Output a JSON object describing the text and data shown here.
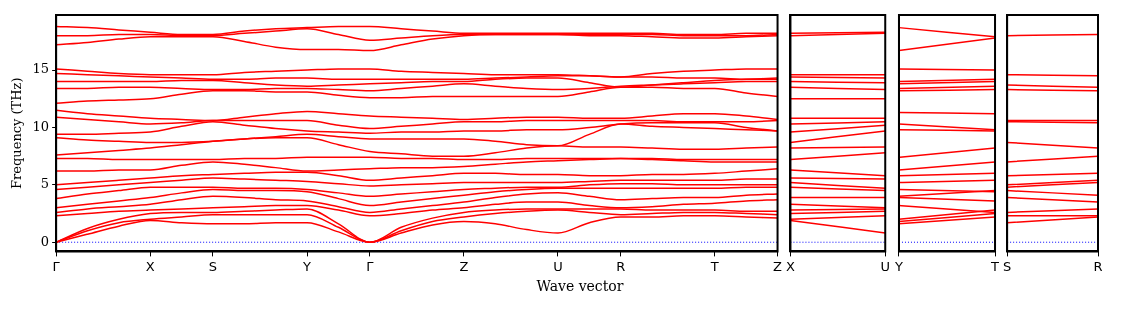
{
  "chart_data": [
    {
      "type": "line",
      "xlabel": "Wave vector",
      "ylabel": "Frequency (THz)",
      "marker": "none",
      "categories": [
        "Γ",
        null,
        null,
        "X",
        null,
        "S",
        null,
        null,
        "Y",
        null,
        "Γ",
        null,
        null,
        "Z",
        null,
        null,
        "U",
        null,
        "R",
        null,
        null,
        "T",
        null,
        "Z"
      ],
      "ylim": [
        -0.8,
        19.8
      ],
      "yticks": [
        0,
        5,
        10,
        15
      ],
      "ref_lines": [
        {
          "axis": "y",
          "value": 0,
          "color": "#0000ff",
          "line_style": "dotted"
        }
      ],
      "series": [
        {
          "color": "#ff0000",
          "values": [
            0,
            0.7,
            1.4,
            1.9,
            1.7,
            1.6,
            1.6,
            1.7,
            1.7,
            0.9,
            0,
            0.8,
            1.5,
            1.8,
            1.6,
            1.1,
            0.8,
            1.7,
            2.2,
            2.2,
            2.3,
            2.3,
            2.2,
            2.1
          ]
        },
        {
          "color": "#ff0000",
          "values": [
            0,
            1.0,
            1.7,
            2.0,
            2.2,
            2.4,
            2.4,
            2.4,
            2.4,
            1.3,
            0,
            1.0,
            1.8,
            2.2,
            2.5,
            2.7,
            2.8,
            2.6,
            2.4,
            2.5,
            2.6,
            2.6,
            2.5,
            2.4
          ]
        },
        {
          "color": "#ff0000",
          "values": [
            0,
            1.2,
            2.0,
            2.5,
            2.6,
            2.6,
            2.7,
            2.8,
            2.9,
            1.6,
            0,
            1.3,
            2.1,
            2.6,
            2.8,
            2.9,
            2.9,
            2.9,
            2.9,
            2.8,
            2.8,
            2.8,
            2.7,
            2.7
          ]
        },
        {
          "color": "#ff0000",
          "values": [
            2.3,
            2.5,
            2.7,
            2.8,
            2.9,
            3.0,
            3.1,
            3.2,
            3.2,
            2.8,
            2.3,
            2.5,
            2.8,
            3.0,
            3.3,
            3.5,
            3.5,
            3.2,
            3.0,
            3.1,
            3.3,
            3.4,
            3.6,
            3.7
          ]
        },
        {
          "color": "#ff0000",
          "values": [
            2.6,
            2.9,
            3.1,
            3.3,
            3.7,
            4.0,
            3.9,
            3.7,
            3.6,
            3.1,
            2.6,
            2.9,
            3.2,
            3.5,
            3.9,
            4.2,
            4.3,
            4.0,
            3.7,
            3.8,
            3.9,
            3.9,
            4.1,
            4.2
          ]
        },
        {
          "color": "#ff0000",
          "values": [
            3.0,
            3.3,
            3.6,
            3.9,
            4.3,
            4.6,
            4.5,
            4.5,
            4.4,
            3.8,
            3.2,
            3.5,
            3.8,
            4.1,
            4.4,
            4.6,
            4.7,
            4.7,
            4.7,
            4.7,
            4.7,
            4.7,
            4.8,
            4.8
          ]
        },
        {
          "color": "#ff0000",
          "values": [
            3.8,
            4.2,
            4.5,
            4.8,
            4.8,
            4.8,
            4.7,
            4.7,
            4.6,
            4.3,
            4.0,
            4.2,
            4.4,
            4.6,
            4.7,
            4.8,
            4.8,
            5.0,
            5.1,
            5.1,
            5.0,
            5.0,
            5.0,
            5.0
          ]
        },
        {
          "color": "#ff0000",
          "values": [
            4.6,
            4.8,
            5.0,
            5.2,
            5.4,
            5.6,
            5.5,
            5.4,
            5.3,
            5.1,
            4.9,
            5.0,
            5.1,
            5.2,
            5.2,
            5.2,
            5.2,
            5.3,
            5.4,
            5.4,
            5.4,
            5.4,
            5.5,
            5.5
          ]
        },
        {
          "color": "#ff0000",
          "values": [
            5.0,
            5.2,
            5.4,
            5.6,
            5.8,
            5.9,
            6.0,
            6.1,
            6.1,
            5.8,
            5.4,
            5.6,
            5.8,
            6.0,
            6.0,
            5.9,
            5.9,
            5.8,
            5.8,
            5.9,
            5.9,
            6.0,
            6.2,
            6.4
          ]
        },
        {
          "color": "#ff0000",
          "values": [
            6.2,
            6.2,
            6.3,
            6.3,
            6.7,
            7.0,
            6.8,
            6.5,
            6.2,
            6.3,
            6.4,
            6.5,
            6.5,
            6.6,
            6.8,
            7.0,
            7.1,
            7.2,
            7.3,
            7.2,
            7.1,
            7.0,
            7.0,
            7.0
          ]
        },
        {
          "color": "#ff0000",
          "values": [
            7.3,
            7.3,
            7.2,
            7.2,
            7.2,
            7.2,
            7.3,
            7.3,
            7.4,
            7.4,
            7.4,
            7.3,
            7.3,
            7.2,
            7.2,
            7.3,
            7.3,
            7.3,
            7.3,
            7.3,
            7.2,
            7.2,
            7.2,
            7.2
          ]
        },
        {
          "color": "#ff0000",
          "values": [
            7.6,
            7.8,
            8.0,
            8.2,
            8.5,
            8.8,
            9.0,
            9.1,
            9.1,
            8.5,
            7.9,
            7.7,
            7.5,
            7.5,
            7.8,
            8.2,
            8.4,
            8.3,
            8.3,
            8.2,
            8.1,
            8.1,
            8.2,
            8.3
          ]
        },
        {
          "color": "#ff0000",
          "values": [
            9.1,
            8.9,
            8.8,
            8.7,
            8.7,
            8.8,
            9.0,
            9.2,
            9.4,
            9.2,
            9.0,
            9.0,
            9.0,
            9.0,
            8.8,
            8.5,
            8.4,
            9.4,
            10.3,
            10.1,
            10.0,
            9.9,
            9.8,
            9.7
          ]
        },
        {
          "color": "#ff0000",
          "values": [
            9.4,
            9.4,
            9.5,
            9.6,
            10.1,
            10.5,
            10.2,
            9.9,
            9.7,
            9.6,
            9.5,
            9.6,
            9.6,
            9.7,
            9.7,
            9.8,
            9.8,
            10.0,
            10.3,
            10.4,
            10.4,
            10.4,
            10.0,
            9.7
          ]
        },
        {
          "color": "#ff0000",
          "values": [
            10.9,
            10.7,
            10.5,
            10.3,
            10.4,
            10.6,
            10.6,
            10.6,
            10.6,
            10.2,
            9.9,
            10.1,
            10.3,
            10.5,
            10.5,
            10.6,
            10.6,
            10.6,
            10.6,
            10.6,
            10.5,
            10.5,
            10.5,
            10.6
          ]
        },
        {
          "color": "#ff0000",
          "values": [
            11.5,
            11.2,
            11.0,
            10.8,
            10.7,
            10.6,
            10.9,
            11.2,
            11.4,
            11.2,
            11.0,
            10.9,
            10.8,
            10.7,
            10.8,
            10.9,
            10.9,
            10.8,
            10.8,
            11.0,
            11.2,
            11.2,
            11.0,
            10.7
          ]
        },
        {
          "color": "#ff0000",
          "values": [
            12.1,
            12.3,
            12.4,
            12.5,
            12.9,
            13.2,
            13.2,
            13.1,
            13.1,
            12.8,
            12.6,
            12.6,
            12.7,
            12.7,
            12.7,
            12.7,
            12.7,
            13.1,
            13.5,
            13.5,
            13.4,
            13.4,
            13.0,
            12.7
          ]
        },
        {
          "color": "#ff0000",
          "values": [
            13.4,
            13.4,
            13.5,
            13.5,
            13.4,
            13.3,
            13.3,
            13.4,
            13.4,
            13.3,
            13.2,
            13.4,
            13.6,
            13.8,
            13.6,
            13.4,
            13.3,
            13.4,
            13.6,
            13.7,
            13.8,
            13.9,
            14.0,
            14.0
          ]
        },
        {
          "color": "#ff0000",
          "values": [
            14.0,
            14.0,
            14.0,
            14.0,
            14.1,
            14.1,
            13.9,
            13.7,
            13.6,
            13.7,
            13.8,
            13.9,
            14.0,
            14.0,
            14.2,
            14.3,
            14.3,
            13.9,
            13.5,
            13.7,
            13.9,
            14.1,
            14.2,
            14.3
          ]
        },
        {
          "color": "#ff0000",
          "values": [
            14.7,
            14.6,
            14.5,
            14.4,
            14.3,
            14.2,
            14.2,
            14.3,
            14.3,
            14.2,
            14.2,
            14.2,
            14.2,
            14.2,
            14.3,
            14.4,
            14.5,
            14.5,
            14.4,
            14.4,
            14.3,
            14.3,
            14.2,
            14.2
          ]
        },
        {
          "color": "#ff0000",
          "values": [
            15.1,
            14.9,
            14.7,
            14.6,
            14.6,
            14.6,
            14.8,
            14.9,
            15.0,
            15.1,
            15.1,
            14.9,
            14.8,
            14.7,
            14.6,
            14.6,
            14.6,
            14.5,
            14.4,
            14.7,
            14.9,
            15.0,
            15.1,
            15.1
          ]
        },
        {
          "color": "#ff0000",
          "values": [
            17.2,
            17.4,
            17.7,
            17.9,
            17.9,
            17.9,
            17.5,
            17.0,
            16.8,
            16.8,
            16.7,
            17.2,
            17.7,
            18.0,
            18.1,
            18.1,
            18.1,
            18.0,
            18.0,
            17.9,
            17.8,
            17.8,
            17.9,
            18.0
          ]
        },
        {
          "color": "#ff0000",
          "values": [
            18.0,
            18.0,
            18.1,
            18.1,
            18.0,
            18.0,
            18.2,
            18.4,
            18.6,
            18.1,
            17.6,
            17.8,
            18.0,
            18.1,
            18.1,
            18.1,
            18.1,
            18.1,
            18.1,
            18.1,
            18.0,
            18.0,
            18.0,
            18.1
          ]
        },
        {
          "color": "#ff0000",
          "values": [
            18.8,
            18.7,
            18.5,
            18.3,
            18.1,
            18.1,
            18.4,
            18.6,
            18.7,
            18.8,
            18.8,
            18.6,
            18.4,
            18.2,
            18.2,
            18.2,
            18.2,
            18.2,
            18.2,
            18.2,
            18.1,
            18.1,
            18.2,
            18.2
          ]
        }
      ]
    },
    {
      "type": "line",
      "marker": "none",
      "tick_labels": "x",
      "categories": [
        "X",
        "U"
      ],
      "ylim": [
        -0.8,
        19.8
      ],
      "yticks": [
        0,
        5,
        10,
        15
      ],
      "ref_lines": [
        {
          "axis": "y",
          "value": 0,
          "color": "#0000ff",
          "line_style": "dotted"
        }
      ],
      "series": [
        {
          "color": "#ff0000",
          "values": [
            1.9,
            0.8
          ]
        },
        {
          "color": "#ff0000",
          "values": [
            2.0,
            2.3
          ]
        },
        {
          "color": "#ff0000",
          "values": [
            2.5,
            2.7
          ]
        },
        {
          "color": "#ff0000",
          "values": [
            2.8,
            2.9
          ]
        },
        {
          "color": "#ff0000",
          "values": [
            3.3,
            3.0
          ]
        },
        {
          "color": "#ff0000",
          "values": [
            3.9,
            3.9
          ]
        },
        {
          "color": "#ff0000",
          "values": [
            4.8,
            4.5
          ]
        },
        {
          "color": "#ff0000",
          "values": [
            5.2,
            4.7
          ]
        },
        {
          "color": "#ff0000",
          "values": [
            5.6,
            5.5
          ]
        },
        {
          "color": "#ff0000",
          "values": [
            6.3,
            5.8
          ]
        },
        {
          "color": "#ff0000",
          "values": [
            7.2,
            7.8
          ]
        },
        {
          "color": "#ff0000",
          "values": [
            8.2,
            8.3
          ]
        },
        {
          "color": "#ff0000",
          "values": [
            8.7,
            9.7
          ]
        },
        {
          "color": "#ff0000",
          "values": [
            9.6,
            10.2
          ]
        },
        {
          "color": "#ff0000",
          "values": [
            10.3,
            10.5
          ]
        },
        {
          "color": "#ff0000",
          "values": [
            10.8,
            10.8
          ]
        },
        {
          "color": "#ff0000",
          "values": [
            12.5,
            12.5
          ]
        },
        {
          "color": "#ff0000",
          "values": [
            13.5,
            13.3
          ]
        },
        {
          "color": "#ff0000",
          "values": [
            14.0,
            13.9
          ]
        },
        {
          "color": "#ff0000",
          "values": [
            14.4,
            14.3
          ]
        },
        {
          "color": "#ff0000",
          "values": [
            14.6,
            14.6
          ]
        },
        {
          "color": "#ff0000",
          "values": [
            18.0,
            18.2
          ]
        },
        {
          "color": "#ff0000",
          "values": [
            18.2,
            18.3
          ]
        }
      ]
    },
    {
      "type": "line",
      "marker": "none",
      "tick_labels": "x",
      "categories": [
        "Y",
        "T"
      ],
      "ylim": [
        -0.8,
        19.8
      ],
      "yticks": [
        0,
        5,
        10,
        15
      ],
      "ref_lines": [
        {
          "axis": "y",
          "value": 0,
          "color": "#0000ff",
          "line_style": "dotted"
        }
      ],
      "series": [
        {
          "color": "#ff0000",
          "values": [
            1.6,
            2.2
          ]
        },
        {
          "color": "#ff0000",
          "values": [
            1.8,
            2.5
          ]
        },
        {
          "color": "#ff0000",
          "values": [
            2.0,
            2.8
          ]
        },
        {
          "color": "#ff0000",
          "values": [
            3.2,
            2.6
          ]
        },
        {
          "color": "#ff0000",
          "values": [
            3.9,
            3.6
          ]
        },
        {
          "color": "#ff0000",
          "values": [
            4.0,
            4.5
          ]
        },
        {
          "color": "#ff0000",
          "values": [
            4.6,
            4.4
          ]
        },
        {
          "color": "#ff0000",
          "values": [
            5.2,
            5.4
          ]
        },
        {
          "color": "#ff0000",
          "values": [
            5.8,
            6.0
          ]
        },
        {
          "color": "#ff0000",
          "values": [
            6.3,
            7.0
          ]
        },
        {
          "color": "#ff0000",
          "values": [
            7.4,
            8.2
          ]
        },
        {
          "color": "#ff0000",
          "values": [
            9.8,
            9.7
          ]
        },
        {
          "color": "#ff0000",
          "values": [
            10.3,
            9.8
          ]
        },
        {
          "color": "#ff0000",
          "values": [
            11.3,
            11.2
          ]
        },
        {
          "color": "#ff0000",
          "values": [
            13.2,
            13.3
          ]
        },
        {
          "color": "#ff0000",
          "values": [
            13.4,
            13.6
          ]
        },
        {
          "color": "#ff0000",
          "values": [
            13.8,
            14.0
          ]
        },
        {
          "color": "#ff0000",
          "values": [
            14.0,
            14.2
          ]
        },
        {
          "color": "#ff0000",
          "values": [
            15.1,
            15.0
          ]
        },
        {
          "color": "#ff0000",
          "values": [
            16.7,
            17.8
          ]
        },
        {
          "color": "#ff0000",
          "values": [
            18.7,
            17.9
          ]
        }
      ]
    },
    {
      "type": "line",
      "marker": "none",
      "tick_labels": "x",
      "categories": [
        "S",
        "R"
      ],
      "ylim": [
        -0.8,
        19.8
      ],
      "yticks": [
        0,
        5,
        10,
        15
      ],
      "ref_lines": [
        {
          "axis": "y",
          "value": 0,
          "color": "#0000ff",
          "line_style": "dotted"
        }
      ],
      "series": [
        {
          "color": "#ff0000",
          "values": [
            1.7,
            2.2
          ]
        },
        {
          "color": "#ff0000",
          "values": [
            2.3,
            2.3
          ]
        },
        {
          "color": "#ff0000",
          "values": [
            2.6,
            2.9
          ]
        },
        {
          "color": "#ff0000",
          "values": [
            3.9,
            3.5
          ]
        },
        {
          "color": "#ff0000",
          "values": [
            4.5,
            4.1
          ]
        },
        {
          "color": "#ff0000",
          "values": [
            4.8,
            5.2
          ]
        },
        {
          "color": "#ff0000",
          "values": [
            5.0,
            5.4
          ]
        },
        {
          "color": "#ff0000",
          "values": [
            5.8,
            6.0
          ]
        },
        {
          "color": "#ff0000",
          "values": [
            7.0,
            7.5
          ]
        },
        {
          "color": "#ff0000",
          "values": [
            8.7,
            8.2
          ]
        },
        {
          "color": "#ff0000",
          "values": [
            10.5,
            10.4
          ]
        },
        {
          "color": "#ff0000",
          "values": [
            10.6,
            10.6
          ]
        },
        {
          "color": "#ff0000",
          "values": [
            13.3,
            13.2
          ]
        },
        {
          "color": "#ff0000",
          "values": [
            13.7,
            13.5
          ]
        },
        {
          "color": "#ff0000",
          "values": [
            14.6,
            14.5
          ]
        },
        {
          "color": "#ff0000",
          "values": [
            18.0,
            18.1
          ]
        }
      ]
    }
  ]
}
